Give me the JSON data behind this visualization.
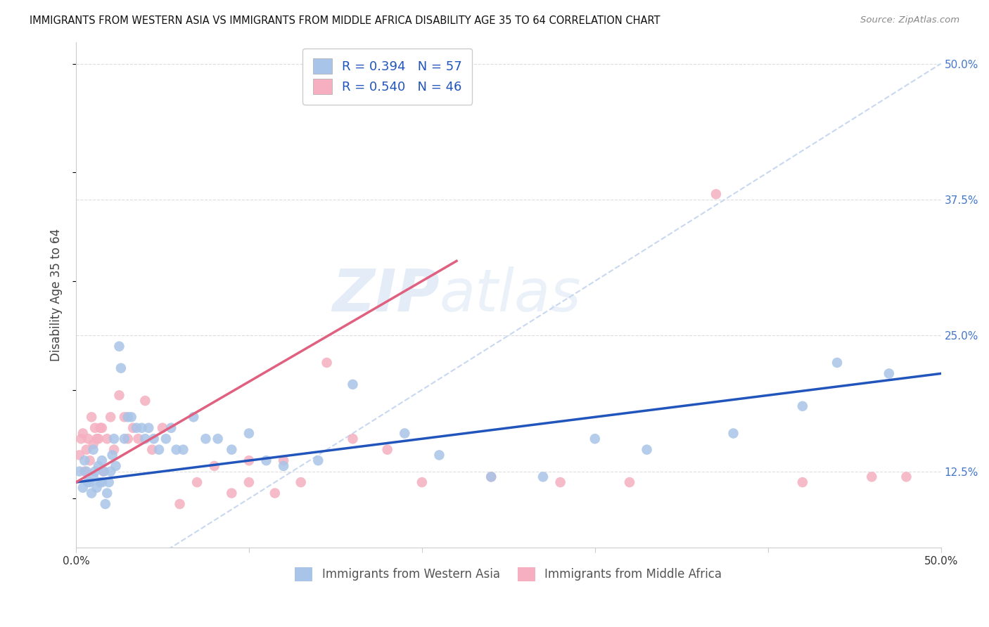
{
  "title": "IMMIGRANTS FROM WESTERN ASIA VS IMMIGRANTS FROM MIDDLE AFRICA DISABILITY AGE 35 TO 64 CORRELATION CHART",
  "source": "Source: ZipAtlas.com",
  "ylabel": "Disability Age 35 to 64",
  "xlim": [
    0.0,
    0.5
  ],
  "ylim": [
    0.055,
    0.52
  ],
  "blue_R": 0.394,
  "blue_N": 57,
  "pink_R": 0.54,
  "pink_N": 46,
  "blue_color": "#a8c4e8",
  "pink_color": "#f5afc0",
  "blue_line_color": "#2255bb",
  "pink_line_color": "#e06080",
  "dashed_color": "#c8d8f0",
  "watermark_color": "#d8e4f4",
  "grid_color": "#dddddd",
  "spine_color": "#cccccc",
  "right_tick_color": "#4477cc",
  "title_color": "#111111",
  "source_color": "#888888",
  "legend_text_color": "#2255bb",
  "bottom_legend_color": "#555555",
  "yticks": [
    0.125,
    0.25,
    0.375,
    0.5
  ],
  "ytick_labels": [
    "12.5%",
    "25.0%",
    "37.5%",
    "50.0%"
  ],
  "blue_scatter_x": [
    0.002,
    0.004,
    0.005,
    0.006,
    0.007,
    0.008,
    0.009,
    0.01,
    0.01,
    0.011,
    0.012,
    0.013,
    0.014,
    0.015,
    0.015,
    0.016,
    0.017,
    0.018,
    0.019,
    0.02,
    0.021,
    0.022,
    0.023,
    0.025,
    0.026,
    0.028,
    0.03,
    0.032,
    0.035,
    0.038,
    0.04,
    0.042,
    0.045,
    0.048,
    0.052,
    0.055,
    0.058,
    0.062,
    0.068,
    0.075,
    0.082,
    0.09,
    0.1,
    0.11,
    0.12,
    0.14,
    0.16,
    0.19,
    0.21,
    0.24,
    0.27,
    0.3,
    0.33,
    0.38,
    0.42,
    0.44,
    0.47
  ],
  "blue_scatter_y": [
    0.125,
    0.11,
    0.135,
    0.125,
    0.115,
    0.115,
    0.105,
    0.12,
    0.145,
    0.125,
    0.11,
    0.13,
    0.115,
    0.135,
    0.115,
    0.125,
    0.095,
    0.105,
    0.115,
    0.125,
    0.14,
    0.155,
    0.13,
    0.24,
    0.22,
    0.155,
    0.175,
    0.175,
    0.165,
    0.165,
    0.155,
    0.165,
    0.155,
    0.145,
    0.155,
    0.165,
    0.145,
    0.145,
    0.175,
    0.155,
    0.155,
    0.145,
    0.16,
    0.135,
    0.13,
    0.135,
    0.205,
    0.16,
    0.14,
    0.12,
    0.12,
    0.155,
    0.145,
    0.16,
    0.185,
    0.225,
    0.215
  ],
  "pink_scatter_x": [
    0.002,
    0.003,
    0.004,
    0.005,
    0.006,
    0.007,
    0.008,
    0.009,
    0.01,
    0.011,
    0.012,
    0.013,
    0.014,
    0.015,
    0.016,
    0.018,
    0.02,
    0.022,
    0.025,
    0.028,
    0.03,
    0.033,
    0.036,
    0.04,
    0.044,
    0.05,
    0.06,
    0.07,
    0.08,
    0.09,
    0.1,
    0.115,
    0.13,
    0.145,
    0.16,
    0.18,
    0.2,
    0.24,
    0.28,
    0.32,
    0.37,
    0.42,
    0.46,
    0.48,
    0.1,
    0.12
  ],
  "pink_scatter_y": [
    0.14,
    0.155,
    0.16,
    0.125,
    0.145,
    0.155,
    0.135,
    0.175,
    0.15,
    0.165,
    0.155,
    0.155,
    0.165,
    0.165,
    0.125,
    0.155,
    0.175,
    0.145,
    0.195,
    0.175,
    0.155,
    0.165,
    0.155,
    0.19,
    0.145,
    0.165,
    0.095,
    0.115,
    0.13,
    0.105,
    0.115,
    0.105,
    0.115,
    0.225,
    0.155,
    0.145,
    0.115,
    0.12,
    0.115,
    0.115,
    0.38,
    0.115,
    0.12,
    0.12,
    0.135,
    0.135
  ]
}
